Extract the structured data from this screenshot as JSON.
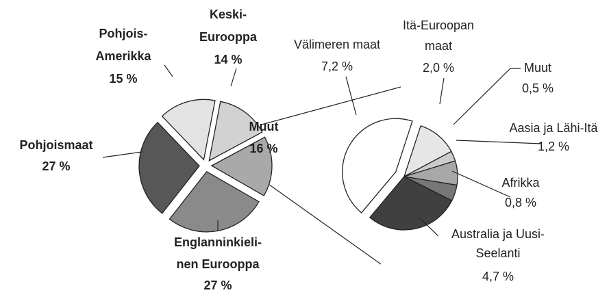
{
  "chart_data": [
    {
      "type": "pie",
      "categories": [
        [
          "Keski-",
          "Eurooppa"
        ],
        [
          "Muut"
        ],
        [
          "Englanninkieli-",
          "nen Eurooppa"
        ],
        [
          "Pohjoismaat"
        ],
        [
          "Pohjois-",
          "Amerikka"
        ]
      ],
      "values": [
        14,
        16,
        27,
        27,
        15
      ],
      "value_labels": [
        "14 %",
        "16 %",
        "27 %",
        "27 %",
        "15 %"
      ],
      "colors": [
        "#d2d2d2",
        "#a9a9a9",
        "#8a8a8a",
        "#575757",
        "#e3e3e3"
      ]
    },
    {
      "type": "pie",
      "categories": [
        [
          "Välimeren maat"
        ],
        [
          "Itä-Euroopan",
          "maat"
        ],
        [
          "Muut"
        ],
        [
          "Aasia ja Lähi-Itä"
        ],
        [
          "Afrikka"
        ],
        [
          "Australia ja Uusi-",
          "Seelanti"
        ]
      ],
      "values": [
        7.2,
        2.0,
        0.5,
        1.2,
        0.8,
        4.7
      ],
      "value_labels": [
        "7,2 %",
        "2,0 %",
        "0,5 %",
        "1,2 %",
        "0,8 %",
        "4,7 %"
      ],
      "colors": [
        "#ffffff",
        "#e6e6e6",
        "#cccccc",
        "#a8a8a8",
        "#777777",
        "#404040"
      ]
    }
  ]
}
